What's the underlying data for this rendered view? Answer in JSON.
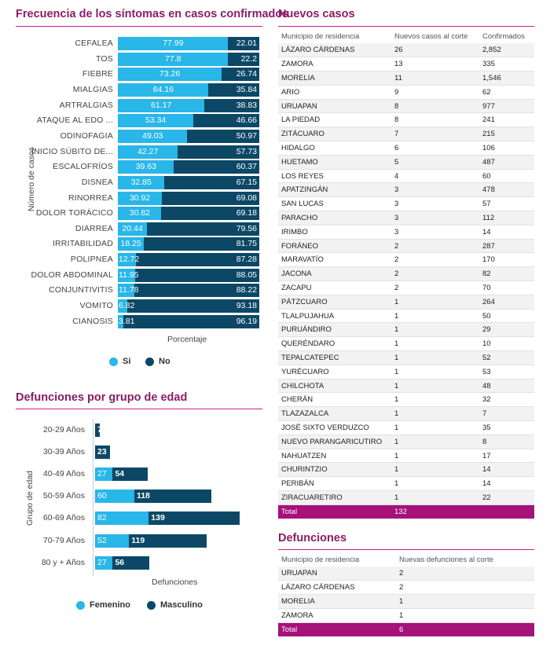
{
  "left_titles": {
    "symptoms": "Frecuencia de los síntomas en casos confirmados",
    "deaths_age": "Defunciones por grupo de edad"
  },
  "right_titles": {
    "new_cases": "Nuevos casos",
    "deaths": "Defunciones"
  },
  "colors": {
    "accent": "#8b1d66",
    "si": "#29b6e8",
    "no": "#0c4866",
    "total_row": "#a6117a"
  },
  "chart_data": [
    {
      "type": "bar",
      "orientation": "horizontal",
      "stacked": true,
      "title": "Frecuencia de los síntomas en casos confirmados",
      "xlabel": "Porcentaje",
      "ylabel": "Número de casos",
      "xlim": [
        0,
        100
      ],
      "categories": [
        "CEFALEA",
        "TOS",
        "FIEBRE",
        "MIALGIAS",
        "ARTRALGIAS",
        "ATAQUE AL EDO ...",
        "ODINOFAGIA",
        "INICIO SÚBITO DE...",
        "ESCALOFRÍOS",
        "DISNEA",
        "RINORREA",
        "DOLOR TORÁCICO",
        "DIARREA",
        "IRRITABILIDAD",
        "POLIPNEA",
        "DOLOR ABDOMINAL",
        "CONJUNTIVITIS",
        "VOMITO",
        "CIANOSIS"
      ],
      "series": [
        {
          "name": "Si",
          "values": [
            77.99,
            77.8,
            73.26,
            64.16,
            61.17,
            53.34,
            49.03,
            42.27,
            39.63,
            32.85,
            30.92,
            30.82,
            20.44,
            18.25,
            12.72,
            11.95,
            11.78,
            6.82,
            3.81
          ]
        },
        {
          "name": "No",
          "values": [
            22.01,
            22.2,
            26.74,
            35.84,
            38.83,
            46.66,
            50.97,
            57.73,
            60.37,
            67.15,
            69.08,
            69.18,
            79.56,
            81.75,
            87.28,
            88.05,
            88.22,
            93.18,
            96.19
          ]
        }
      ],
      "legend": "bottom"
    },
    {
      "type": "bar",
      "orientation": "horizontal",
      "stacked": true,
      "title": "Defunciones por grupo de edad",
      "xlabel": "Defunciones",
      "ylabel": "Grupo de edad",
      "xlim": [
        0,
        230
      ],
      "categories": [
        "20-29 Años",
        "30-39 Años",
        "40-49 Años",
        "50-59 Años",
        "60-69 Años",
        "70-79 Años",
        "80 y + Años"
      ],
      "series": [
        {
          "name": "Femenino",
          "values": [
            null,
            null,
            27,
            60,
            82,
            52,
            27
          ]
        },
        {
          "name": "Masculino",
          "values": [
            7,
            23,
            54,
            118,
            139,
            119,
            56
          ]
        }
      ],
      "legend": "bottom"
    }
  ],
  "new_cases_table": {
    "headers": [
      "Municipio de residencia",
      "Nuevos casos al corte",
      "Confirmados"
    ],
    "rows": [
      [
        "LÁZARO CÁRDENAS",
        "26",
        "2,852"
      ],
      [
        "ZAMORA",
        "13",
        "335"
      ],
      [
        "MORELIA",
        "11",
        "1,546"
      ],
      [
        "ARIO",
        "9",
        "62"
      ],
      [
        "URUAPAN",
        "8",
        "977"
      ],
      [
        "LA PIEDAD",
        "8",
        "241"
      ],
      [
        "ZITÁCUARO",
        "7",
        "215"
      ],
      [
        "HIDALGO",
        "6",
        "106"
      ],
      [
        "HUETAMO",
        "5",
        "487"
      ],
      [
        "LOS REYES",
        "4",
        "60"
      ],
      [
        "APATZINGÁN",
        "3",
        "478"
      ],
      [
        "SAN LUCAS",
        "3",
        "57"
      ],
      [
        "PARACHO",
        "3",
        "112"
      ],
      [
        "IRIMBO",
        "3",
        "14"
      ],
      [
        "FORÁNEO",
        "2",
        "287"
      ],
      [
        "MARAVATÍO",
        "2",
        "170"
      ],
      [
        "JACONA",
        "2",
        "82"
      ],
      [
        "ZACAPU",
        "2",
        "70"
      ],
      [
        "PÁTZCUARO",
        "1",
        "264"
      ],
      [
        "TLALPUJAHUA",
        "1",
        "50"
      ],
      [
        "PURUÁNDIRO",
        "1",
        "29"
      ],
      [
        "QUERÉNDARO",
        "1",
        "10"
      ],
      [
        "TEPALCATEPEC",
        "1",
        "52"
      ],
      [
        "YURÉCUARO",
        "1",
        "53"
      ],
      [
        "CHILCHOTA",
        "1",
        "48"
      ],
      [
        "CHERÁN",
        "1",
        "32"
      ],
      [
        "TLAZAZALCA",
        "1",
        "7"
      ],
      [
        "JOSÉ SIXTO VERDUZCO",
        "1",
        "35"
      ],
      [
        "NUEVO PARANGARICUTIRO",
        "1",
        "8"
      ],
      [
        "NAHUATZEN",
        "1",
        "17"
      ],
      [
        "CHURINTZIO",
        "1",
        "14"
      ],
      [
        "PERIBÁN",
        "1",
        "14"
      ],
      [
        "ZIRACUARETIRO",
        "1",
        "22"
      ]
    ],
    "total": [
      "Total",
      "132",
      ""
    ]
  },
  "deaths_table": {
    "headers": [
      "Municipio de residencia",
      "Nuevas defunciones al corte"
    ],
    "rows": [
      [
        "URUAPAN",
        "2"
      ],
      [
        "LÁZARO CÁRDENAS",
        "2"
      ],
      [
        "MORELIA",
        "1"
      ],
      [
        "ZAMORA",
        "1"
      ]
    ],
    "total": [
      "Total",
      "6"
    ]
  }
}
